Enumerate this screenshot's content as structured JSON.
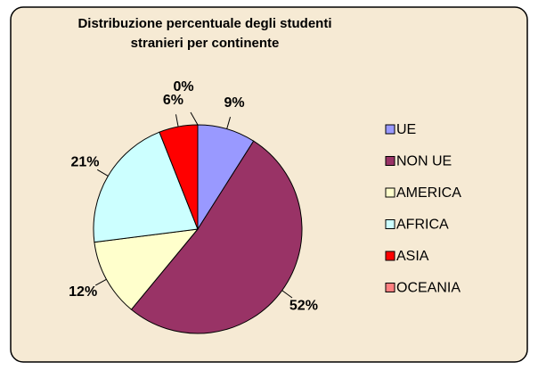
{
  "chart_data": {
    "type": "pie",
    "title": "Distribuzione percentuale degli studenti stranieri per continente",
    "categories": [
      "UE",
      "NON UE",
      "AMERICA",
      "AFRICA",
      "ASIA",
      "OCEANIA"
    ],
    "values": [
      9,
      52,
      12,
      21,
      6,
      0
    ],
    "value_labels": [
      "9%",
      "52%",
      "12%",
      "21%",
      "6%",
      "0%"
    ],
    "colors": [
      "#9999ff",
      "#993366",
      "#ffffcc",
      "#ccffff",
      "#ff0000",
      "#ff8080"
    ],
    "legend": "right"
  }
}
